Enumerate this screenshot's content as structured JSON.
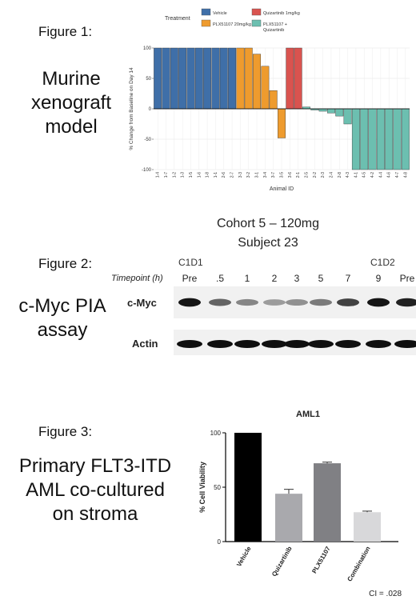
{
  "figure1": {
    "label": "Figure 1:",
    "caption_lines": [
      "Murine",
      "xenograft",
      "model"
    ],
    "chart_data": {
      "type": "bar",
      "title": "",
      "legend": {
        "title": "Treatment",
        "entries": [
          {
            "name": "Vehicle",
            "color": "#3f6fa8"
          },
          {
            "name": "Quizartinib 1mg/kg",
            "color": "#d9534f"
          },
          {
            "name": "PLX51107 20mg/kg",
            "color": "#ee9b2e"
          },
          {
            "name": "PLX51107 +",
            "name2": "Quizartinib",
            "color": "#6cbfb0"
          }
        ],
        "placement": "top"
      },
      "ylabel": "% Change from Baseline on Day 14",
      "xlabel": "Animal ID",
      "ylim": [
        -100,
        100
      ],
      "yticks": [
        100,
        50,
        0,
        -50,
        -100
      ],
      "categories": [
        "1-4",
        "1-7",
        "1-2",
        "1-3",
        "1-5",
        "1-6",
        "1-8",
        "1-1",
        "2-6",
        "2-7",
        "3-3",
        "3-2",
        "3-1",
        "3-4",
        "3-7",
        "3-5",
        "3-6",
        "2-1",
        "2-5",
        "2-2",
        "2-3",
        "2-4",
        "2-8",
        "4-3",
        "4-1",
        "4-5",
        "4-2",
        "4-4",
        "4-6",
        "4-7",
        "4-8"
      ],
      "values": [
        100,
        100,
        100,
        100,
        100,
        100,
        100,
        100,
        100,
        100,
        100,
        100,
        90,
        70,
        30,
        -48,
        100,
        100,
        3,
        -2,
        -4,
        -7,
        -12,
        -25,
        -100,
        -100,
        -100,
        -100,
        -100,
        -100,
        -100
      ],
      "groups": [
        0,
        0,
        0,
        0,
        0,
        0,
        0,
        0,
        0,
        0,
        2,
        2,
        2,
        2,
        2,
        2,
        1,
        1,
        3,
        3,
        3,
        3,
        3,
        3,
        3,
        3,
        3,
        3,
        3,
        3,
        3
      ]
    }
  },
  "figure2": {
    "label": "Figure 2:",
    "caption_lines": [
      "c-Myc PIA",
      "assay"
    ],
    "cohort_title": "Cohort 5 – 120mg",
    "subject_title": "Subject 23",
    "c1d1": "C1D1",
    "c1d2": "C1D2",
    "timepoint_label": "Timepoint (h)",
    "timepoints": [
      "Pre",
      ".5",
      "1",
      "2",
      "3",
      "5",
      "7",
      "9",
      "Pre"
    ],
    "row_cmyc": "c-Myc",
    "row_actin": "Actin",
    "cmyc_intensity": [
      0.95,
      0.6,
      0.45,
      0.35,
      0.4,
      0.5,
      0.75,
      0.95,
      0.9
    ],
    "actin_intensity": [
      1,
      1,
      1,
      1,
      1,
      1,
      1,
      1,
      1
    ]
  },
  "figure3": {
    "label": "Figure 3:",
    "caption_lines": [
      "Primary FLT3-ITD",
      "AML co-cultured",
      "on stroma"
    ],
    "chart_data": {
      "type": "bar",
      "title": "AML1",
      "ylabel": "% Cell Viability",
      "ylim": [
        0,
        100
      ],
      "yticks": [
        0,
        50,
        100
      ],
      "categories": [
        "Vehicle",
        "Quizartinib",
        "PLX51107",
        "Combination"
      ],
      "values": [
        100,
        44,
        72,
        27
      ],
      "errors": [
        0,
        4,
        1,
        1
      ],
      "colors": [
        "#000000",
        "#a9a9ad",
        "#808084",
        "#d8d8da"
      ],
      "annotation": "CI = .028"
    }
  }
}
